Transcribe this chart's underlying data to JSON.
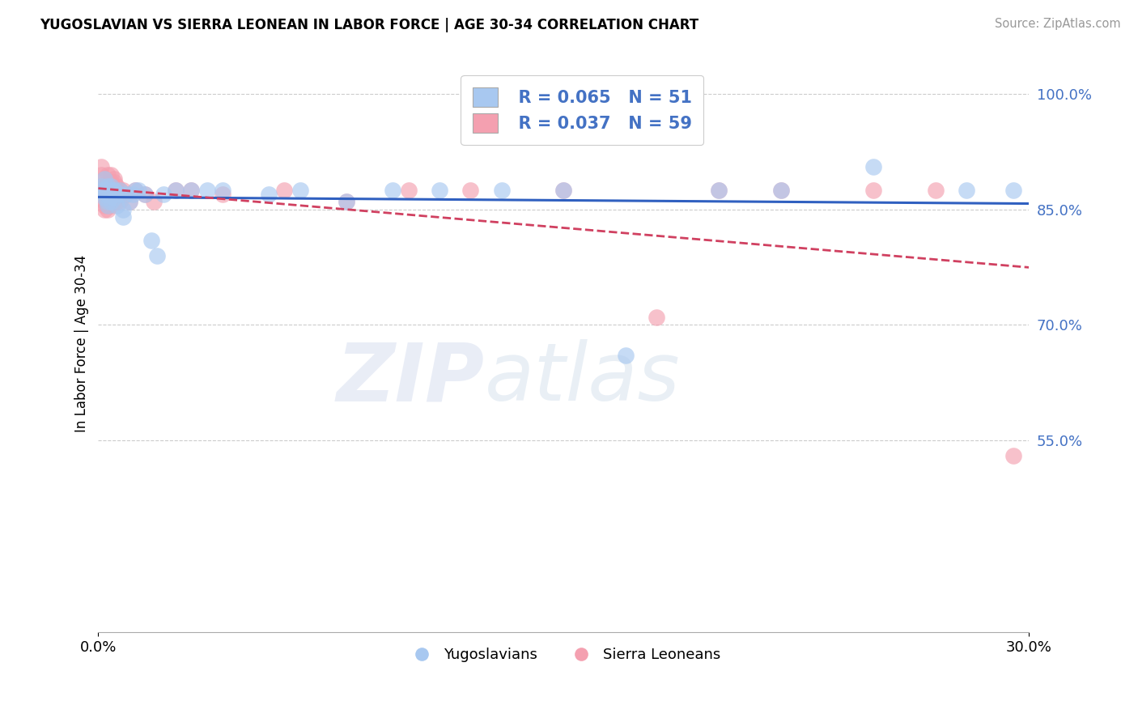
{
  "title": "YUGOSLAVIAN VS SIERRA LEONEAN IN LABOR FORCE | AGE 30-34 CORRELATION CHART",
  "source": "Source: ZipAtlas.com",
  "ylabel": "In Labor Force | Age 30-34",
  "watermark_zip": "ZIP",
  "watermark_atlas": "atlas",
  "xlim": [
    0.0,
    0.3
  ],
  "ylim": [
    0.3,
    1.05
  ],
  "yticks": [
    1.0,
    0.85,
    0.7,
    0.55
  ],
  "ytick_labels": [
    "100.0%",
    "85.0%",
    "70.0%",
    "55.0%"
  ],
  "xtick_labels": [
    "0.0%",
    "30.0%"
  ],
  "legend_r_blue": "R = 0.065",
  "legend_n_blue": "N = 51",
  "legend_r_pink": "R = 0.037",
  "legend_n_pink": "N = 59",
  "blue_color": "#a8c8f0",
  "pink_color": "#f4a0b0",
  "trend_blue": "#3060c0",
  "trend_pink": "#d04060",
  "legend_text_color": "#4472c4",
  "blue_scatter_x": [
    0.001,
    0.001,
    0.002,
    0.002,
    0.002,
    0.002,
    0.003,
    0.003,
    0.003,
    0.003,
    0.003,
    0.004,
    0.004,
    0.004,
    0.004,
    0.005,
    0.005,
    0.005,
    0.005,
    0.006,
    0.006,
    0.007,
    0.007,
    0.008,
    0.008,
    0.009,
    0.01,
    0.011,
    0.012,
    0.013,
    0.015,
    0.017,
    0.019,
    0.021,
    0.025,
    0.03,
    0.035,
    0.04,
    0.055,
    0.065,
    0.08,
    0.095,
    0.11,
    0.13,
    0.15,
    0.17,
    0.2,
    0.22,
    0.25,
    0.28,
    0.295
  ],
  "blue_scatter_y": [
    0.875,
    0.88,
    0.875,
    0.87,
    0.865,
    0.89,
    0.88,
    0.875,
    0.87,
    0.86,
    0.855,
    0.875,
    0.88,
    0.875,
    0.86,
    0.875,
    0.87,
    0.865,
    0.875,
    0.87,
    0.855,
    0.875,
    0.87,
    0.85,
    0.84,
    0.87,
    0.86,
    0.87,
    0.875,
    0.875,
    0.87,
    0.81,
    0.79,
    0.87,
    0.875,
    0.875,
    0.875,
    0.875,
    0.87,
    0.875,
    0.86,
    0.875,
    0.875,
    0.875,
    0.875,
    0.66,
    0.875,
    0.875,
    0.905,
    0.875,
    0.875
  ],
  "pink_scatter_x": [
    0.001,
    0.001,
    0.001,
    0.002,
    0.002,
    0.002,
    0.002,
    0.002,
    0.002,
    0.002,
    0.002,
    0.003,
    0.003,
    0.003,
    0.003,
    0.003,
    0.003,
    0.003,
    0.003,
    0.004,
    0.004,
    0.004,
    0.004,
    0.004,
    0.004,
    0.004,
    0.004,
    0.005,
    0.005,
    0.005,
    0.005,
    0.005,
    0.006,
    0.006,
    0.006,
    0.006,
    0.007,
    0.007,
    0.007,
    0.008,
    0.009,
    0.01,
    0.012,
    0.015,
    0.018,
    0.025,
    0.03,
    0.04,
    0.06,
    0.08,
    0.1,
    0.12,
    0.15,
    0.18,
    0.2,
    0.22,
    0.25,
    0.27,
    0.295
  ],
  "pink_scatter_y": [
    0.88,
    0.895,
    0.905,
    0.875,
    0.89,
    0.88,
    0.87,
    0.86,
    0.855,
    0.85,
    0.875,
    0.895,
    0.885,
    0.88,
    0.875,
    0.87,
    0.86,
    0.855,
    0.85,
    0.895,
    0.885,
    0.88,
    0.875,
    0.87,
    0.865,
    0.86,
    0.855,
    0.89,
    0.885,
    0.875,
    0.87,
    0.86,
    0.88,
    0.875,
    0.87,
    0.86,
    0.875,
    0.87,
    0.86,
    0.875,
    0.87,
    0.86,
    0.875,
    0.87,
    0.86,
    0.875,
    0.875,
    0.87,
    0.875,
    0.86,
    0.875,
    0.875,
    0.875,
    0.71,
    0.875,
    0.875,
    0.875,
    0.875,
    0.53
  ]
}
